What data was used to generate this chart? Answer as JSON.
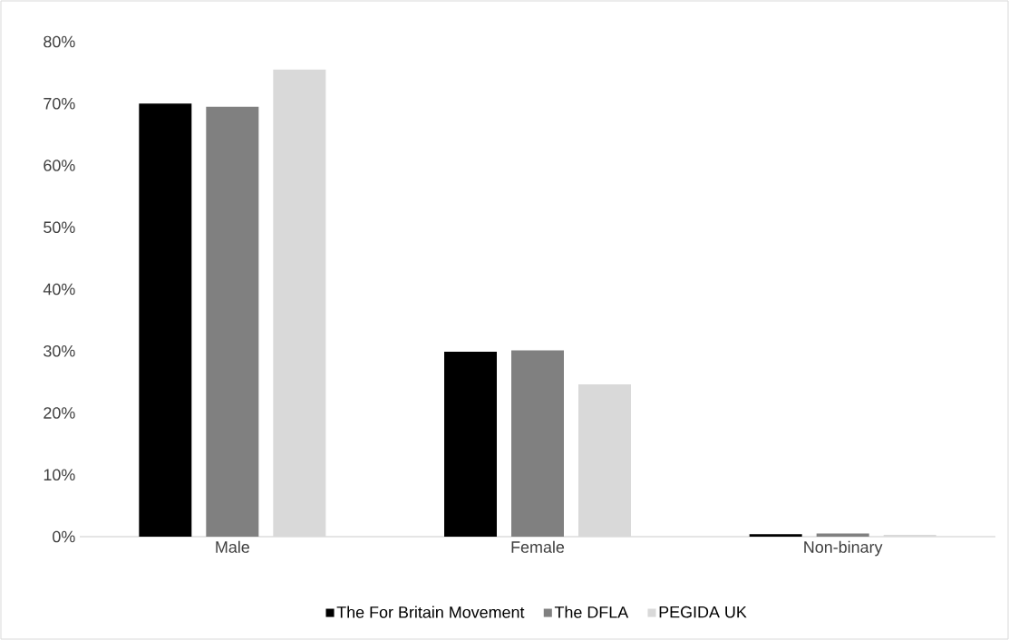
{
  "chart_data": {
    "type": "bar",
    "categories": [
      "Male",
      "Female",
      "Non-binary"
    ],
    "series": [
      {
        "name": "The For Britain Movement",
        "color": "#000000",
        "values": [
          70.0,
          29.9,
          0.4
        ]
      },
      {
        "name": "The DFLA",
        "color": "#808080",
        "values": [
          69.5,
          30.1,
          0.5
        ]
      },
      {
        "name": "PEGIDA UK",
        "color": "#d9d9d9",
        "values": [
          75.5,
          24.6,
          0.3
        ]
      }
    ],
    "ylim": [
      0,
      80
    ],
    "yticks": [
      {
        "value": 0,
        "label": "0%"
      },
      {
        "value": 10,
        "label": "10%"
      },
      {
        "value": 20,
        "label": "20%"
      },
      {
        "value": 30,
        "label": "30%"
      },
      {
        "value": 40,
        "label": "40%"
      },
      {
        "value": 50,
        "label": "50%"
      },
      {
        "value": 60,
        "label": "60%"
      },
      {
        "value": 70,
        "label": "70%"
      },
      {
        "value": 80,
        "label": "80%"
      }
    ],
    "grid": false,
    "legend": "bottom"
  }
}
